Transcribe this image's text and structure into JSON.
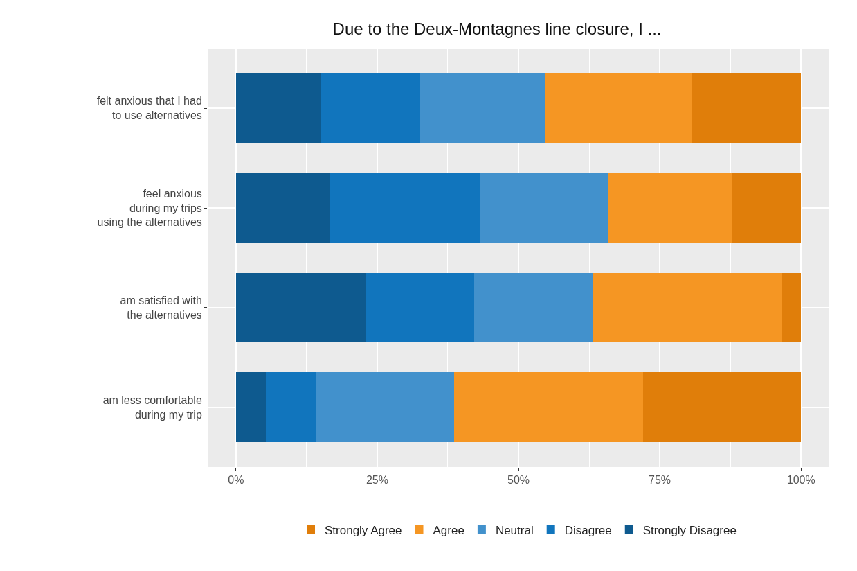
{
  "chart_data": {
    "type": "bar",
    "orientation": "horizontal",
    "stacked": true,
    "title": "Due to the Deux-Montagnes line closure, I ...",
    "categories": [
      "felt anxious that I had\nto use alternatives",
      "feel anxious\nduring my trips\nusing the alternatives",
      "am satisfied with\nthe alternatives",
      "am less comfortable\nduring my trip"
    ],
    "series": [
      {
        "name": "Strongly Disagree",
        "color": "#0e5a8f",
        "values": [
          15.0,
          16.7,
          22.9,
          5.3
        ]
      },
      {
        "name": "Disagree",
        "color": "#1175bd",
        "values": [
          17.6,
          26.4,
          19.2,
          8.8
        ]
      },
      {
        "name": "Neutral",
        "color": "#4291cc",
        "values": [
          22.0,
          22.7,
          21.0,
          24.5
        ]
      },
      {
        "name": "Agree",
        "color": "#f59623",
        "values": [
          26.2,
          22.0,
          33.4,
          33.4
        ]
      },
      {
        "name": "Strongly Agree",
        "color": "#e07e0a",
        "values": [
          19.2,
          12.2,
          3.5,
          28.0
        ]
      }
    ],
    "xlim": [
      -5,
      105
    ],
    "xticks": [
      {
        "value": 0,
        "label": "0%"
      },
      {
        "value": 25,
        "label": "25%"
      },
      {
        "value": 50,
        "label": "50%"
      },
      {
        "value": 75,
        "label": "75%"
      },
      {
        "value": 100,
        "label": "100%"
      }
    ],
    "grid": true,
    "legend": "bottom"
  }
}
